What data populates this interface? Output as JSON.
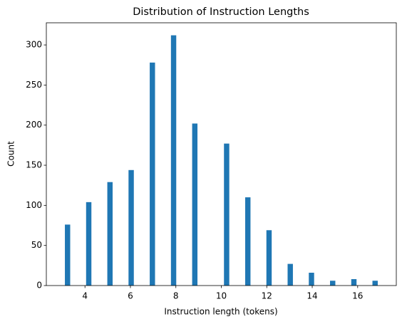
{
  "chart_data": {
    "type": "histogram",
    "title": "Distribution of Instruction Lengths",
    "x_label": "Instruction length (tokens)",
    "y_label": "Count",
    "color": "#1f77b4",
    "bins": [
      3,
      3.4667,
      3.9333,
      4.4,
      4.8667,
      5.3333,
      5.8,
      6.2667,
      6.7333,
      7.2,
      7.6667,
      8.1333,
      8.6,
      9.0667,
      9.5333,
      10,
      10.4667,
      10.9333,
      11.4,
      11.8667,
      12.3333,
      12.8,
      13.2667,
      13.7333,
      14.2,
      14.6667,
      15.1333,
      15.6,
      16.0667,
      16.5333,
      17
    ],
    "values": [
      76,
      0,
      104,
      0,
      129,
      0,
      144,
      0,
      278,
      0,
      312,
      0,
      202,
      0,
      0,
      177,
      0,
      110,
      0,
      69,
      0,
      27,
      0,
      16,
      0,
      6,
      0,
      8,
      0,
      6
    ],
    "xlim": [
      2.3,
      17.7
    ],
    "ylim": [
      0,
      327.6
    ],
    "xticks": [
      4,
      6,
      8,
      10,
      12,
      14,
      16
    ],
    "yticks": [
      0,
      50,
      100,
      150,
      200,
      250,
      300
    ]
  }
}
